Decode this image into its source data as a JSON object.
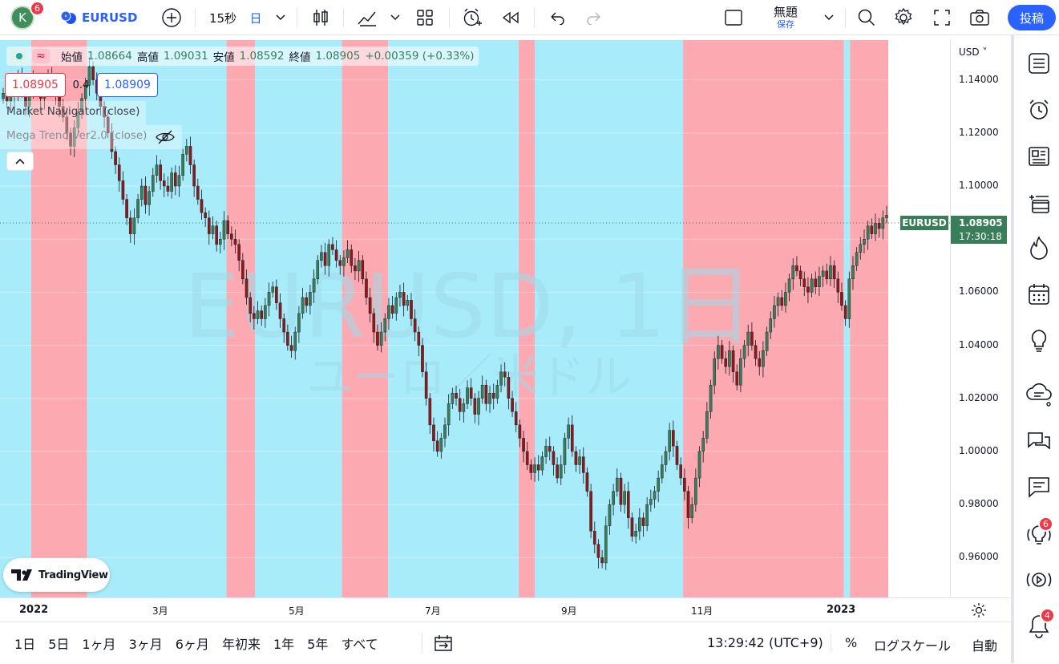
{
  "topbar": {
    "avatar_letter": "K",
    "avatar_badge": "6",
    "symbol": "EURUSD",
    "interval": "15秒",
    "interval_unit": "日",
    "layout_name": "無題",
    "layout_save": "保存",
    "publish": "投稿"
  },
  "legend": {
    "open_label": "始値",
    "open": "1.08664",
    "high_label": "高値",
    "high": "1.09031",
    "low_label": "安値",
    "low": "1.08592",
    "close_label": "終値",
    "close": "1.08905",
    "change": "+0.00359 (+0.33%)",
    "bid": "1.08905",
    "spread": "0.4",
    "ask": "1.08909",
    "indicator1": "Market Navigator (close)",
    "indicator2": "Mega Trend Ver2.0 (close)"
  },
  "watermark": {
    "symbol": "EURUSD, 1日",
    "description": "ユーロ／米ドル"
  },
  "price_scale": {
    "currency": "USD",
    "ticks": [
      "1.14000",
      "1.12000",
      "1.10000",
      "1.08000",
      "1.06000",
      "1.04000",
      "1.02000",
      "1.00000",
      "0.98000",
      "0.96000"
    ],
    "last_price": "1.08905",
    "countdown": "17:30:18",
    "symbol_tag": "EURUSD"
  },
  "time_scale": {
    "ticks": [
      "2022",
      "3月",
      "5月",
      "7月",
      "9月",
      "11月",
      "2023"
    ]
  },
  "bottombar": {
    "ranges": [
      "1日",
      "5日",
      "1ヶ月",
      "3ヶ月",
      "6ヶ月",
      "年初来",
      "1年",
      "5年",
      "すべて"
    ],
    "clock": "13:29:42 (UTC+9)",
    "percent": "%",
    "log": "ログスケール",
    "auto": "自動"
  },
  "logo": "TradingView",
  "rightbar": {
    "ideas_badge": "6",
    "alerts_badge": "4"
  },
  "colors": {
    "bull": "#26a69a",
    "bear": "#ef5350",
    "band_blue": "#a8ecfb",
    "band_red": "#fda9b1",
    "accent": "#2962ff"
  },
  "chart_data": {
    "type": "candlestick",
    "ylim": [
      0.945,
      1.155
    ],
    "close_series": [
      1.135,
      1.132,
      1.138,
      1.134,
      1.141,
      1.136,
      1.13,
      1.135,
      1.14,
      1.137,
      1.133,
      1.136,
      1.142,
      1.138,
      1.134,
      1.13,
      1.126,
      1.12,
      1.115,
      1.122,
      1.128,
      1.133,
      1.138,
      1.145,
      1.14,
      1.135,
      1.13,
      1.126,
      1.12,
      1.113,
      1.108,
      1.102,
      1.095,
      1.088,
      1.082,
      1.088,
      1.095,
      1.1,
      1.093,
      1.098,
      1.104,
      1.108,
      1.102,
      1.1,
      1.098,
      1.105,
      1.1,
      1.104,
      1.112,
      1.115,
      1.108,
      1.1,
      1.095,
      1.09,
      1.088,
      1.082,
      1.085,
      1.078,
      1.08,
      1.087,
      1.082,
      1.08,
      1.078,
      1.072,
      1.065,
      1.058,
      1.052,
      1.05,
      1.053,
      1.05,
      1.055,
      1.06,
      1.062,
      1.056,
      1.05,
      1.045,
      1.04,
      1.038,
      1.045,
      1.052,
      1.058,
      1.055,
      1.06,
      1.065,
      1.072,
      1.075,
      1.07,
      1.078,
      1.076,
      1.072,
      1.07,
      1.073,
      1.076,
      1.07,
      1.068,
      1.072,
      1.065,
      1.058,
      1.052,
      1.045,
      1.04,
      1.045,
      1.05,
      1.055,
      1.052,
      1.058,
      1.06,
      1.055,
      1.057,
      1.05,
      1.045,
      1.04,
      1.03,
      1.02,
      1.01,
      1.004,
      1.0,
      1.005,
      1.01,
      1.018,
      1.022,
      1.02,
      1.015,
      1.018,
      1.024,
      1.02,
      1.014,
      1.02,
      1.025,
      1.018,
      1.022,
      1.02,
      1.025,
      1.03,
      1.028,
      1.02,
      1.015,
      1.01,
      1.005,
      1.0,
      0.995,
      0.992,
      0.995,
      0.993,
      0.998,
      1.002,
      1.0,
      0.995,
      0.99,
      0.995,
      1.005,
      1.01,
      1.0,
      0.995,
      0.998,
      0.992,
      0.985,
      0.97,
      0.965,
      0.96,
      0.958,
      0.972,
      0.98,
      0.985,
      0.99,
      0.98,
      0.985,
      0.975,
      0.968,
      0.97,
      0.975,
      0.972,
      0.98,
      0.982,
      0.985,
      0.99,
      0.995,
      1.0,
      1.008,
      1.002,
      0.995,
      0.99,
      0.985,
      0.975,
      0.98,
      0.99,
      1.0,
      1.005,
      1.015,
      1.025,
      1.035,
      1.04,
      1.035,
      1.032,
      1.038,
      1.03,
      1.025,
      1.035,
      1.04,
      1.045,
      1.04,
      1.035,
      1.032,
      1.038,
      1.045,
      1.05,
      1.055,
      1.058,
      1.055,
      1.06,
      1.065,
      1.07,
      1.068,
      1.065,
      1.062,
      1.06,
      1.065,
      1.062,
      1.066,
      1.068,
      1.065,
      1.07,
      1.065,
      1.06,
      1.055,
      1.05,
      1.065,
      1.07,
      1.075,
      1.078,
      1.08,
      1.085,
      1.082,
      1.086,
      1.084,
      1.088,
      1.089
    ]
  }
}
